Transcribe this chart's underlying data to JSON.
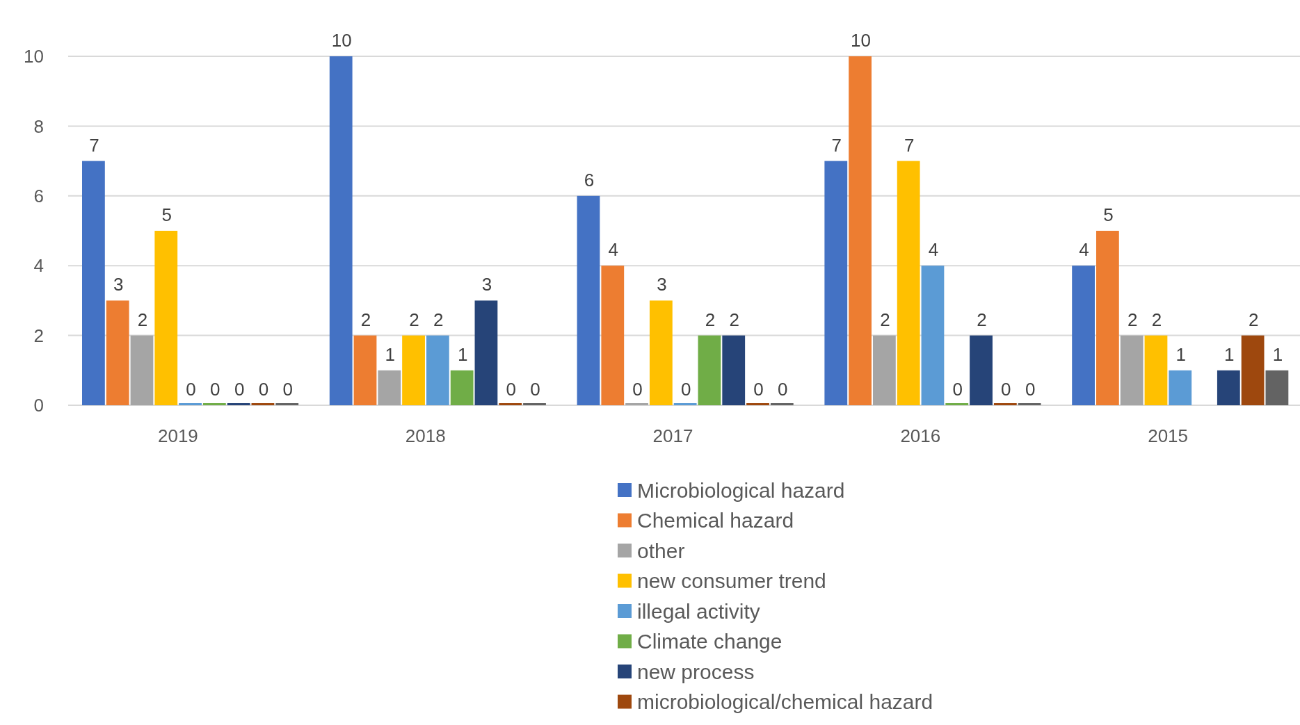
{
  "chart_data": {
    "type": "bar",
    "categories": [
      "2019",
      "2018",
      "2017",
      "2016",
      "2015"
    ],
    "series": [
      {
        "name": "Microbiological hazard",
        "color": "#4472c4",
        "values": [
          7,
          10,
          6,
          7,
          4
        ]
      },
      {
        "name": "Chemical hazard",
        "color": "#ed7d31",
        "values": [
          3,
          2,
          4,
          10,
          5
        ]
      },
      {
        "name": "other",
        "color": "#a5a5a5",
        "values": [
          2,
          1,
          0,
          2,
          2
        ]
      },
      {
        "name": "new consumer trend",
        "color": "#ffc000",
        "values": [
          5,
          2,
          3,
          7,
          2
        ]
      },
      {
        "name": "illegal activity",
        "color": "#5b9bd5",
        "values": [
          0,
          2,
          0,
          4,
          1
        ]
      },
      {
        "name": "Climate change",
        "color": "#70ad47",
        "values": [
          0,
          1,
          2,
          0,
          null
        ]
      },
      {
        "name": "new process",
        "color": "#264478",
        "values": [
          0,
          3,
          2,
          2,
          1
        ]
      },
      {
        "name": "microbiological/chemical hazard",
        "color": "#9e480e",
        "values": [
          0,
          0,
          0,
          0,
          2
        ]
      },
      {
        "color": "#636363",
        "values": [
          0,
          0,
          0,
          0,
          1
        ]
      }
    ],
    "ylim": [
      0,
      10
    ],
    "yticks": [
      0,
      2,
      4,
      6,
      8,
      10
    ],
    "grid": "y",
    "data_labels": true,
    "legend": "bottom"
  }
}
